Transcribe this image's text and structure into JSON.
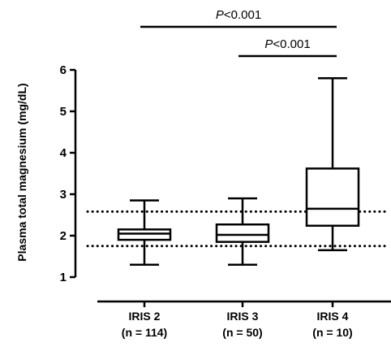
{
  "chart_data": {
    "type": "box",
    "ylabel": "Plasma total magnesium (mg/dL)",
    "ylim": [
      1,
      6
    ],
    "yticks": [
      1,
      2,
      3,
      4,
      5,
      6
    ],
    "categories": [
      {
        "line1": "IRIS 2",
        "line2": "(n = 114)"
      },
      {
        "line1": "IRIS 3",
        "line2": "(n = 50)"
      },
      {
        "line1": "IRIS 4",
        "line2": "(n = 10)"
      }
    ],
    "boxes": [
      {
        "min": 1.3,
        "q1": 1.9,
        "median": 2.05,
        "q3": 2.15,
        "max": 2.85
      },
      {
        "min": 1.3,
        "q1": 1.85,
        "median": 2.02,
        "q3": 2.27,
        "max": 2.9
      },
      {
        "min": 1.65,
        "q1": 2.24,
        "median": 2.65,
        "q3": 3.62,
        "max": 5.8
      }
    ],
    "reference_lines": [
      1.75,
      2.58
    ],
    "significance": [
      {
        "from": 0,
        "to": 2,
        "p_label": "P",
        "p_text": "<0.001"
      },
      {
        "from": 1,
        "to": 2,
        "p_label": "P",
        "p_text": "<0.001"
      }
    ]
  }
}
